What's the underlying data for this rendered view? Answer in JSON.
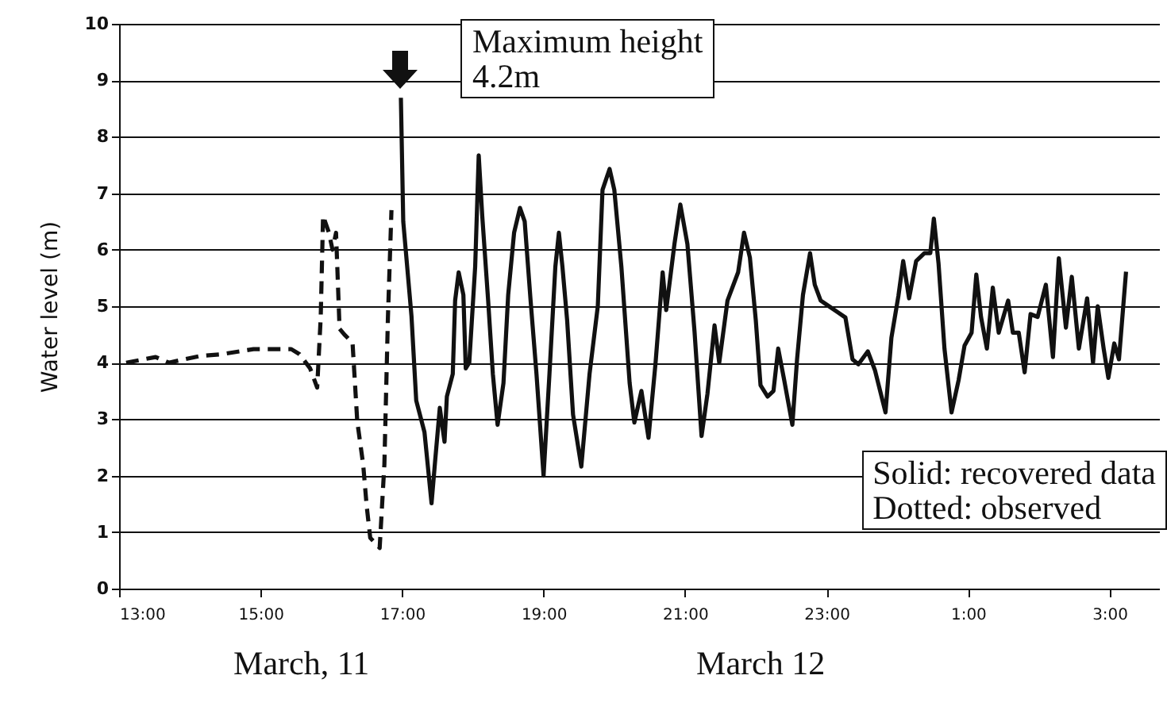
{
  "chart_data": {
    "type": "line",
    "ylabel": "Water level (m)",
    "xlim": [
      "--03-11T13:00",
      "--03-12T03:42"
    ],
    "ylim": [
      0,
      10
    ],
    "xticks": [
      {
        "value": "--03-11T13:00",
        "label": "13:00"
      },
      {
        "value": "--03-11T15:00",
        "label": "15:00"
      },
      {
        "value": "--03-11T17:00",
        "label": "17:00"
      },
      {
        "value": "--03-11T19:00",
        "label": "19:00"
      },
      {
        "value": "--03-11T21:00",
        "label": "21:00"
      },
      {
        "value": "--03-11T23:00",
        "label": "23:00"
      },
      {
        "value": "--03-12T01:00",
        "label": "1:00"
      },
      {
        "value": "--03-12T03:00",
        "label": "3:00"
      }
    ],
    "yticks": [
      0,
      1,
      2,
      3,
      4,
      5,
      6,
      7,
      8,
      9,
      10
    ],
    "grid": "y",
    "annotations": [
      {
        "text": "Maximum height\n4.2m",
        "x": "--03-11T16:59",
        "y": 8.69
      },
      "Solid: recovered data\nDotted: observed",
      "March, 11",
      "March 12"
    ],
    "series": [
      {
        "color": "#111111",
        "line_style": "dashed",
        "x": [
          "--03-11T13:06",
          "--03-11T13:31",
          "--03-11T13:42",
          "--03-11T14:09",
          "--03-11T14:27",
          "--03-11T14:54",
          "--03-11T15:26",
          "--03-11T15:33",
          "--03-11T15:42",
          "--03-11T15:48",
          "--03-11T15:51",
          "--03-11T15:53",
          "--03-11T15:58",
          "--03-11T16:01",
          "--03-11T16:04",
          "--03-11T16:07",
          "--03-11T16:11",
          "--03-11T16:18",
          "--03-11T16:22",
          "--03-11T16:27",
          "--03-11T16:30",
          "--03-11T16:33",
          "--03-11T16:41",
          "--03-11T16:45",
          "--03-11T16:48",
          "--03-11T16:51"
        ],
        "values": [
          4.0,
          4.1,
          4.0,
          4.12,
          4.15,
          4.24,
          4.24,
          4.15,
          3.9,
          3.56,
          4.8,
          6.6,
          6.3,
          6.0,
          6.3,
          4.6,
          4.5,
          4.35,
          2.96,
          2.2,
          1.46,
          0.9,
          0.72,
          2.2,
          4.8,
          6.7
        ]
      },
      {
        "color": "#111111",
        "line_style": "solid",
        "x": [
          "--03-11T16:59",
          "--03-11T17:01",
          "--03-11T17:08",
          "--03-11T17:12",
          "--03-11T17:19",
          "--03-11T17:25",
          "--03-11T17:28",
          "--03-11T17:32",
          "--03-11T17:36",
          "--03-11T17:38",
          "--03-11T17:43",
          "--03-11T17:45",
          "--03-11T17:48",
          "--03-11T17:52",
          "--03-11T17:54",
          "--03-11T17:57",
          "--03-11T18:02",
          "--03-11T18:05",
          "--03-11T18:08",
          "--03-11T18:13",
          "--03-11T18:17",
          "--03-11T18:21",
          "--03-11T18:26",
          "--03-11T18:30",
          "--03-11T18:35",
          "--03-11T18:40",
          "--03-11T18:44",
          "--03-11T18:49",
          "--03-11T18:54",
          "--03-11T19:00",
          "--03-11T19:05",
          "--03-11T19:10",
          "--03-11T19:13",
          "--03-11T19:16",
          "--03-11T19:20",
          "--03-11T19:25",
          "--03-11T19:32",
          "--03-11T19:39",
          "--03-11T19:46",
          "--03-11T19:50",
          "--03-11T19:56",
          "--03-11T20:00",
          "--03-11T20:06",
          "--03-11T20:13",
          "--03-11T20:17",
          "--03-11T20:23",
          "--03-11T20:29",
          "--03-11T20:35",
          "--03-11T20:41",
          "--03-11T20:44",
          "--03-11T20:51",
          "--03-11T20:56",
          "--03-11T21:02",
          "--03-11T21:08",
          "--03-11T21:14",
          "--03-11T21:19",
          "--03-11T21:25",
          "--03-11T21:29",
          "--03-11T21:36",
          "--03-11T21:45",
          "--03-11T21:50",
          "--03-11T21:55",
          "--03-11T22:00",
          "--03-11T22:04",
          "--03-11T22:10",
          "--03-11T22:15",
          "--03-11T22:19",
          "--03-11T22:24",
          "--03-11T22:31",
          "--03-11T22:35",
          "--03-11T22:40",
          "--03-11T22:46",
          "--03-11T22:50",
          "--03-11T22:55",
          "--03-11T23:02",
          "--03-11T23:09",
          "--03-11T23:16",
          "--03-11T23:22",
          "--03-11T23:27",
          "--03-11T23:35",
          "--03-11T23:41",
          "--03-11T23:50",
          "--03-11T23:55",
          "--03-12T00:01",
          "--03-12T00:05",
          "--03-12T00:10",
          "--03-12T00:16",
          "--03-12T00:23",
          "--03-12T00:28",
          "--03-12T00:31",
          "--03-12T00:35",
          "--03-12T00:40",
          "--03-12T00:46",
          "--03-12T00:52",
          "--03-12T00:57",
          "--03-12T01:03",
          "--03-12T01:07",
          "--03-12T01:11",
          "--03-12T01:16",
          "--03-12T01:21",
          "--03-12T01:26",
          "--03-12T01:34",
          "--03-12T01:38",
          "--03-12T01:43",
          "--03-12T01:48",
          "--03-12T01:53",
          "--03-12T01:59",
          "--03-12T02:06",
          "--03-12T02:12",
          "--03-12T02:17",
          "--03-12T02:23",
          "--03-12T02:28",
          "--03-12T02:34",
          "--03-12T02:41",
          "--03-12T02:46",
          "--03-12T02:50",
          "--03-12T02:55",
          "--03-12T02:59",
          "--03-12T03:04",
          "--03-12T03:08",
          "--03-12T03:14"
        ],
        "values": [
          8.69,
          6.5,
          4.82,
          3.33,
          2.77,
          1.51,
          2.25,
          3.2,
          2.6,
          3.4,
          3.8,
          5.1,
          5.6,
          5.2,
          3.9,
          4.0,
          5.7,
          7.67,
          6.6,
          5.1,
          3.8,
          2.9,
          3.64,
          5.2,
          6.3,
          6.74,
          6.5,
          5.1,
          3.8,
          2.0,
          3.8,
          5.7,
          6.3,
          5.7,
          4.75,
          3.08,
          2.16,
          3.8,
          5.0,
          7.06,
          7.43,
          7.06,
          5.7,
          3.64,
          2.94,
          3.5,
          2.67,
          4.0,
          5.6,
          4.93,
          6.1,
          6.8,
          6.1,
          4.56,
          2.7,
          3.45,
          4.66,
          4.0,
          5.1,
          5.6,
          6.3,
          5.86,
          4.75,
          3.6,
          3.4,
          3.5,
          4.25,
          3.7,
          2.9,
          4.06,
          5.2,
          5.94,
          5.38,
          5.1,
          5.0,
          4.9,
          4.8,
          4.06,
          3.97,
          4.2,
          3.87,
          3.12,
          4.44,
          5.19,
          5.8,
          5.14,
          5.8,
          5.94,
          5.94,
          6.55,
          5.75,
          4.25,
          3.12,
          3.69,
          4.3,
          4.53,
          5.56,
          4.81,
          4.25,
          5.33,
          4.53,
          5.1,
          4.53,
          4.53,
          3.83,
          4.86,
          4.81,
          5.38,
          4.1,
          5.85,
          4.62,
          5.52,
          4.25,
          5.14,
          4.0,
          5.0,
          4.25,
          3.73,
          4.34,
          4.06,
          5.61
        ]
      }
    ]
  }
}
